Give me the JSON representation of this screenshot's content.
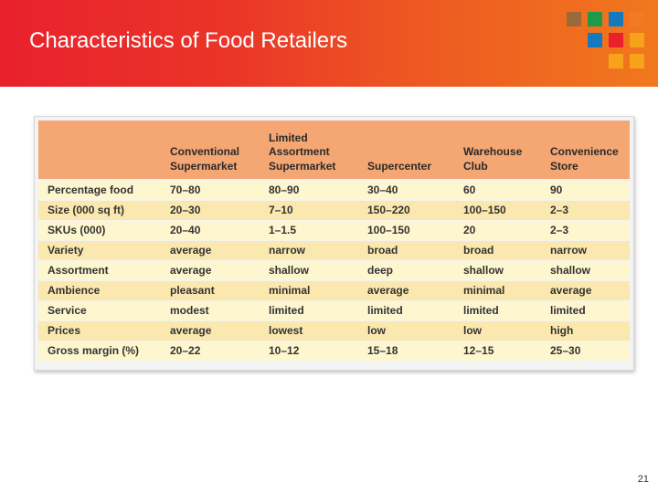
{
  "slide": {
    "title": "Characteristics of Food Retailers",
    "page_number": "21"
  },
  "decor_colors": [
    "#9b6a3c",
    "#1e9b4a",
    "#1479bd",
    "#f07b22",
    "#1479bd",
    "#e8212d",
    "#f7a21b",
    "#f7a21b",
    "#f7a21b"
  ],
  "table": {
    "header_color": "#f4a673",
    "row_colors": [
      "#fdf6cf",
      "#fae8ae"
    ],
    "columns": [
      "",
      "Conventional\nSupermarket",
      "Limited\nAssortment\nSupermarket",
      "Supercenter",
      "Warehouse\nClub",
      "Convenience\nStore"
    ],
    "rows": [
      [
        "Percentage food",
        "70–80",
        "80–90",
        "30–40",
        "60",
        "90"
      ],
      [
        "Size (000 sq ft)",
        "20–30",
        "7–10",
        "150–220",
        "100–150",
        "2–3"
      ],
      [
        "SKUs (000)",
        "20–40",
        "1–1.5",
        "100–150",
        "20",
        "2–3"
      ],
      [
        "Variety",
        "average",
        "narrow",
        "broad",
        "broad",
        "narrow"
      ],
      [
        "Assortment",
        "average",
        "shallow",
        "deep",
        "shallow",
        "shallow"
      ],
      [
        "Ambience",
        "pleasant",
        "minimal",
        "average",
        "minimal",
        "average"
      ],
      [
        "Service",
        "modest",
        "limited",
        "limited",
        "limited",
        "limited"
      ],
      [
        "Prices",
        "average",
        "lowest",
        "low",
        "low",
        "high"
      ],
      [
        "Gross margin (%)",
        "20–22",
        "10–12",
        "15–18",
        "12–15",
        "25–30"
      ]
    ]
  }
}
